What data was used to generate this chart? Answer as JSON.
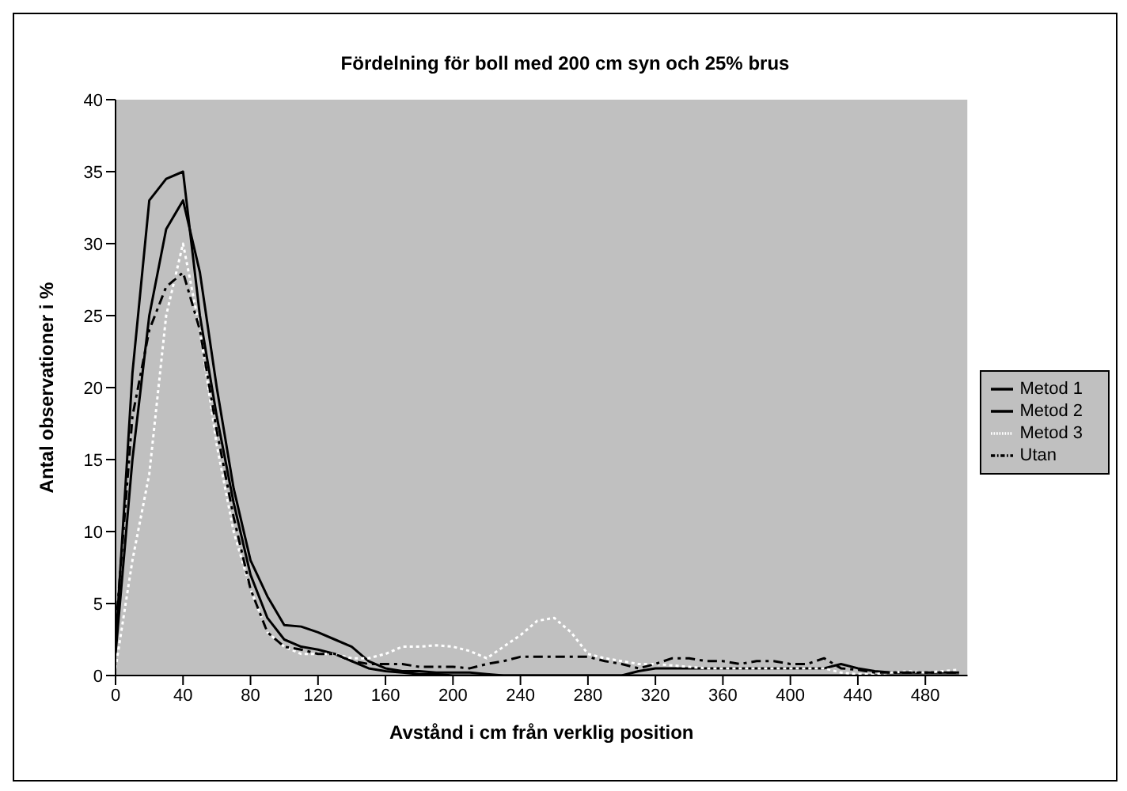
{
  "chart_data": {
    "type": "line",
    "title": "Fördelning för boll med 200 cm syn och 25% brus",
    "xlabel": "Avstånd i cm från verklig position",
    "ylabel": "Antal observationer i %",
    "x": [
      0,
      10,
      20,
      30,
      40,
      50,
      60,
      70,
      80,
      90,
      100,
      110,
      120,
      130,
      140,
      150,
      160,
      170,
      180,
      190,
      200,
      210,
      220,
      230,
      240,
      250,
      260,
      270,
      280,
      290,
      300,
      310,
      320,
      330,
      340,
      350,
      360,
      370,
      380,
      390,
      400,
      410,
      420,
      430,
      440,
      450,
      460,
      470,
      480,
      490,
      500
    ],
    "series": [
      {
        "name": "Metod 1",
        "color": "#000000",
        "line_style": "solid",
        "values": [
          2,
          21,
          33,
          34.5,
          35,
          25,
          18,
          12,
          7,
          4,
          2.5,
          2,
          1.8,
          1.5,
          1,
          0.5,
          0.3,
          0.2,
          0.1,
          0.1,
          0,
          0,
          0,
          0,
          0,
          0,
          0,
          0,
          0,
          0,
          0,
          0,
          0,
          0,
          0,
          0,
          0,
          0,
          0,
          0,
          0,
          0,
          0,
          0,
          0,
          0,
          0,
          0,
          0,
          0,
          0
        ]
      },
      {
        "name": "Metod 2",
        "color": "#000000",
        "line_style": "solid",
        "values": [
          1.5,
          15,
          25,
          31,
          33,
          28,
          20,
          13,
          8,
          5.5,
          3.5,
          3.4,
          3,
          2.5,
          2,
          1,
          0.5,
          0.3,
          0.3,
          0.2,
          0.2,
          0.2,
          0.1,
          0,
          0,
          0,
          0,
          0,
          0,
          0,
          0,
          0.3,
          0.5,
          0.5,
          0.5,
          0.5,
          0.5,
          0.5,
          0.5,
          0.5,
          0.5,
          0.5,
          0.5,
          0.8,
          0.5,
          0.3,
          0.2,
          0.2,
          0.2,
          0.2,
          0.2
        ]
      },
      {
        "name": "Metod 3",
        "color": "#ffffff",
        "line_style": "dotted",
        "values": [
          0.5,
          8,
          14,
          25,
          30,
          24,
          16,
          10,
          6,
          3,
          2,
          1.5,
          1.5,
          1.5,
          1.2,
          1.2,
          1.5,
          2,
          2,
          2.1,
          2,
          1.7,
          1.2,
          2,
          2.8,
          3.8,
          4,
          3,
          1.5,
          1.2,
          1,
          0.8,
          0.8,
          0.7,
          0.6,
          0.5,
          0.5,
          0.5,
          0.5,
          0.5,
          0.5,
          0.5,
          0.5,
          0.2,
          0.1,
          0.1,
          0.2,
          0.3,
          0.2,
          0.3,
          0.4
        ]
      },
      {
        "name": "Utan",
        "color": "#000000",
        "line_style": "dashed",
        "values": [
          3,
          18,
          24,
          27,
          28,
          24,
          17,
          11,
          6,
          3,
          2,
          1.8,
          1.5,
          1.5,
          1,
          0.8,
          0.8,
          0.8,
          0.6,
          0.6,
          0.6,
          0.5,
          0.8,
          1,
          1.3,
          1.3,
          1.3,
          1.3,
          1.3,
          1,
          0.8,
          0.5,
          0.8,
          1.2,
          1.2,
          1,
          1,
          0.8,
          1,
          1,
          0.8,
          0.8,
          1.2,
          0.5,
          0.4,
          0.2,
          0.2,
          0.2,
          0.2,
          0.2,
          0.2
        ]
      }
    ],
    "xlim": [
      0,
      505
    ],
    "xticks": [
      0,
      40,
      80,
      120,
      160,
      200,
      240,
      280,
      320,
      360,
      400,
      440,
      480
    ],
    "ylim": [
      0,
      40
    ],
    "yticks": [
      0,
      5,
      10,
      15,
      20,
      25,
      30,
      35,
      40
    ],
    "grid": false,
    "legend": "right",
    "marker": "none"
  }
}
